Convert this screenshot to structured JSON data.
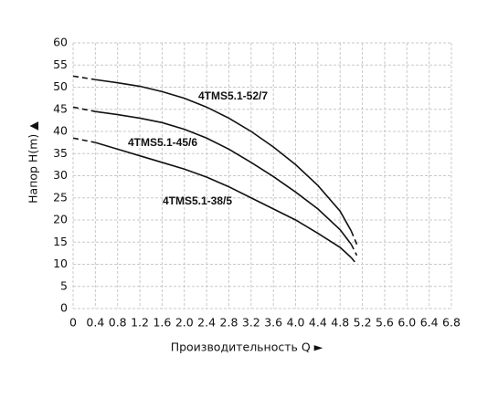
{
  "chart_data": {
    "type": "line",
    "x_label": "Производительность Q ►",
    "y_label": "Напор H(m) ▲",
    "xlim": [
      0,
      6.8
    ],
    "xticks": [
      0,
      0.4,
      0.8,
      1.2,
      1.6,
      {
        "value": 2,
        "label": "2.0"
      },
      2.4,
      2.8,
      3.2,
      3.6,
      {
        "value": 4,
        "label": "4.0"
      },
      4.4,
      4.8,
      5.2,
      5.6,
      {
        "value": 6,
        "label": "6.0"
      },
      6.4,
      6.8
    ],
    "ylim": [
      0,
      60
    ],
    "yticks": [
      0,
      5,
      10,
      15,
      20,
      25,
      30,
      35,
      40,
      45,
      50,
      55,
      60
    ],
    "grid": true,
    "dashed_ends": true,
    "series": [
      {
        "name": "4TMS5.1-52/7",
        "color": "#111111",
        "x": [
          0,
          0.4,
          0.8,
          1.2,
          1.6,
          2.0,
          2.4,
          2.8,
          3.2,
          3.6,
          4.0,
          4.4,
          4.8,
          5.0,
          5.1
        ],
        "values": [
          52.5,
          51.7,
          51.0,
          50.2,
          49.0,
          47.5,
          45.5,
          43.0,
          40.0,
          36.5,
          32.5,
          27.8,
          22.0,
          17.5,
          14.5
        ]
      },
      {
        "name": "4TMS5.1-45/6",
        "color": "#111111",
        "x": [
          0,
          0.4,
          0.8,
          1.2,
          1.6,
          2.0,
          2.4,
          2.8,
          3.2,
          3.6,
          4.0,
          4.4,
          4.8,
          5.0,
          5.1
        ],
        "values": [
          45.5,
          44.5,
          43.8,
          43.0,
          42.0,
          40.5,
          38.5,
          36.0,
          33.0,
          29.8,
          26.3,
          22.5,
          17.8,
          14.5,
          12.0
        ]
      },
      {
        "name": "4TMS5.1-38/5",
        "color": "#111111",
        "x": [
          0,
          0.4,
          0.8,
          1.2,
          1.6,
          2.0,
          2.4,
          2.8,
          3.2,
          3.6,
          4.0,
          4.4,
          4.8,
          5.0,
          5.1
        ],
        "values": [
          38.5,
          37.5,
          36.0,
          34.5,
          33.0,
          31.5,
          29.7,
          27.5,
          25.0,
          22.5,
          20.0,
          17.0,
          13.8,
          11.5,
          10.0
        ]
      }
    ]
  }
}
